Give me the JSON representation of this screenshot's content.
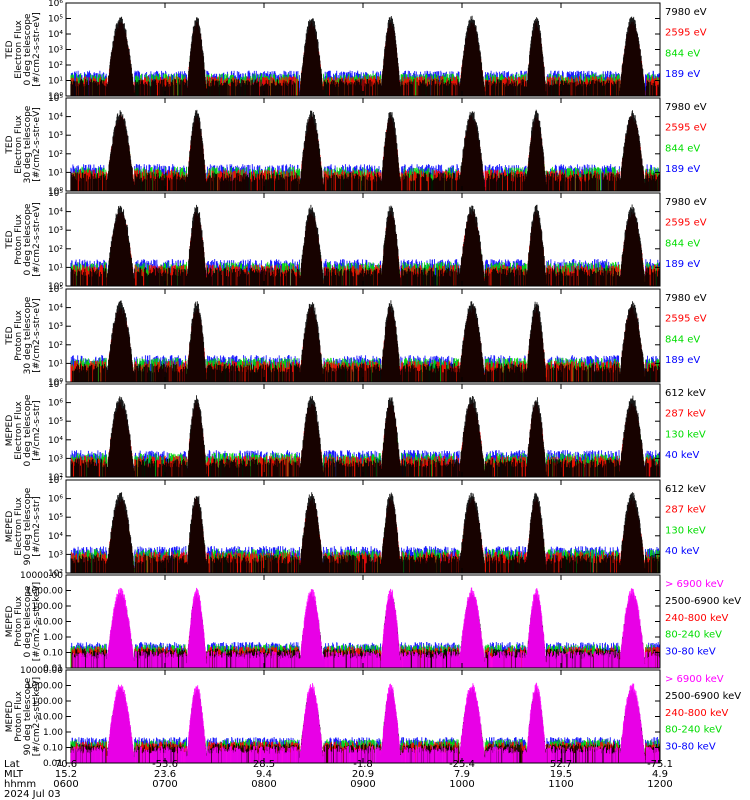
{
  "chart_data": {
    "type": "scatter",
    "date_label": "2024 Jul 03",
    "x_axis": {
      "row_labels": [
        "Lat",
        "MLT",
        "hhmm"
      ],
      "ticks": [
        {
          "time": "0600",
          "lat": "70.6",
          "mlt": "15.2"
        },
        {
          "time": "0700",
          "lat": "-53.6",
          "mlt": "23.6"
        },
        {
          "time": "0800",
          "lat": "28.5",
          "mlt": "9.4"
        },
        {
          "time": "0900",
          "lat": "-1.8",
          "mlt": "20.9"
        },
        {
          "time": "1000",
          "lat": "-25.4",
          "mlt": "7.9"
        },
        {
          "time": "1100",
          "lat": "52.7",
          "mlt": "19.5"
        },
        {
          "time": "1200",
          "lat": "-75.1",
          "mlt": "4.9"
        }
      ]
    },
    "passes_hours": [
      {
        "center": 6.55,
        "width": 0.28
      },
      {
        "center": 7.32,
        "width": 0.2
      },
      {
        "center": 8.48,
        "width": 0.24
      },
      {
        "center": 9.28,
        "width": 0.2
      },
      {
        "center": 10.1,
        "width": 0.26
      },
      {
        "center": 10.75,
        "width": 0.2
      },
      {
        "center": 11.72,
        "width": 0.26
      }
    ],
    "panels": [
      {
        "id": "ted-e-0",
        "title_lines": [
          "TED",
          "Electron Flux",
          "0 deg telescope",
          "[#/cm2-s-str-eV]"
        ],
        "y_ticks": [
          "10⁰",
          "10¹",
          "10²",
          "10³",
          "10⁴",
          "10⁵",
          "10⁶"
        ],
        "y_exp": [
          0,
          6
        ],
        "legend": [
          {
            "label": "7980 eV",
            "color": "#000000"
          },
          {
            "label": "2595 eV",
            "color": "#ff0000"
          },
          {
            "label": "844 eV",
            "color": "#00dd00"
          },
          {
            "label": "189 eV",
            "color": "#0000ff"
          }
        ]
      },
      {
        "id": "ted-e-30",
        "title_lines": [
          "TED",
          "Electron Flux",
          "30 deg telescope",
          "[#/cm2-s-str-eV]"
        ],
        "y_ticks": [
          "10⁰",
          "10¹",
          "10²",
          "10³",
          "10⁴",
          "10⁵"
        ],
        "y_exp": [
          0,
          5
        ],
        "legend": [
          {
            "label": "7980 eV",
            "color": "#000000"
          },
          {
            "label": "2595 eV",
            "color": "#ff0000"
          },
          {
            "label": "844 eV",
            "color": "#00dd00"
          },
          {
            "label": "189 eV",
            "color": "#0000ff"
          }
        ]
      },
      {
        "id": "ted-p-0",
        "title_lines": [
          "TED",
          "Proton Flux",
          "0 deg telescope",
          "[#/cm2-s-str-eV]"
        ],
        "y_ticks": [
          "10⁰",
          "10¹",
          "10²",
          "10³",
          "10⁴",
          "10⁵"
        ],
        "y_exp": [
          0,
          5
        ],
        "legend": [
          {
            "label": "7980 eV",
            "color": "#000000"
          },
          {
            "label": "2595 eV",
            "color": "#ff0000"
          },
          {
            "label": "844 eV",
            "color": "#00dd00"
          },
          {
            "label": "189 eV",
            "color": "#0000ff"
          }
        ]
      },
      {
        "id": "ted-p-30",
        "title_lines": [
          "TED",
          "Proton Flux",
          "30 deg telescope",
          "[#/cm2-s-str-eV]"
        ],
        "y_ticks": [
          "10⁰",
          "10¹",
          "10²",
          "10³",
          "10⁴",
          "10⁵"
        ],
        "y_exp": [
          0,
          5
        ],
        "legend": [
          {
            "label": "7980 eV",
            "color": "#000000"
          },
          {
            "label": "2595 eV",
            "color": "#ff0000"
          },
          {
            "label": "844 eV",
            "color": "#00dd00"
          },
          {
            "label": "189 eV",
            "color": "#0000ff"
          }
        ]
      },
      {
        "id": "meped-e-0",
        "title_lines": [
          "MEPED",
          "Electron Flux",
          "0 deg telescope",
          "[#/cm2-s-str]"
        ],
        "y_ticks": [
          "10²",
          "10³",
          "10⁴",
          "10⁵",
          "10⁶",
          "10⁷"
        ],
        "y_exp": [
          2,
          7
        ],
        "legend": [
          {
            "label": "612 keV",
            "color": "#000000"
          },
          {
            "label": "287 keV",
            "color": "#ff0000"
          },
          {
            "label": "130 keV",
            "color": "#00dd00"
          },
          {
            "label": "40 keV",
            "color": "#0000ff"
          }
        ]
      },
      {
        "id": "meped-e-90",
        "title_lines": [
          "MEPED",
          "Electron Flux",
          "90 deg telescope",
          "[#/cm2-s-str]"
        ],
        "y_ticks": [
          "10²",
          "10³",
          "10⁴",
          "10⁵",
          "10⁶",
          "10⁷"
        ],
        "y_exp": [
          2,
          7
        ],
        "legend": [
          {
            "label": "612 keV",
            "color": "#000000"
          },
          {
            "label": "287 keV",
            "color": "#ff0000"
          },
          {
            "label": "130 keV",
            "color": "#00dd00"
          },
          {
            "label": "40 keV",
            "color": "#0000ff"
          }
        ]
      },
      {
        "id": "meped-p-0",
        "title_lines": [
          "MEPED",
          "Proton Flux",
          "0 deg telescope",
          "[#/cm2-s-str-keV]"
        ],
        "y_ticks": [
          "0.01",
          "0.10",
          "1.00",
          "10.00",
          "100.00",
          "1000.00",
          "10000.00"
        ],
        "y_exp": [
          -2,
          4
        ],
        "legend": [
          {
            "label": "> 6900 keV",
            "color": "#ff00ff"
          },
          {
            "label": "2500-6900 keV",
            "color": "#000000"
          },
          {
            "label": "240-800 keV",
            "color": "#ff0000"
          },
          {
            "label": "80-240 keV",
            "color": "#00dd00"
          },
          {
            "label": "30-80 keV",
            "color": "#0000ff"
          }
        ]
      },
      {
        "id": "meped-p-90",
        "title_lines": [
          "MEPED",
          "Proton Flux",
          "90 deg telescope",
          "[#/cm2-s-str-keV]"
        ],
        "y_ticks": [
          "0.01",
          "0.10",
          "1.00",
          "10.00",
          "100.00",
          "1000.00",
          "10000.00"
        ],
        "y_exp": [
          -2,
          4
        ],
        "legend": [
          {
            "label": "> 6900 keV",
            "color": "#ff00ff"
          },
          {
            "label": "2500-6900 keV",
            "color": "#000000"
          },
          {
            "label": "240-800 keV",
            "color": "#ff0000"
          },
          {
            "label": "80-240 keV",
            "color": "#00dd00"
          },
          {
            "label": "30-80 keV",
            "color": "#0000ff"
          }
        ]
      }
    ]
  }
}
